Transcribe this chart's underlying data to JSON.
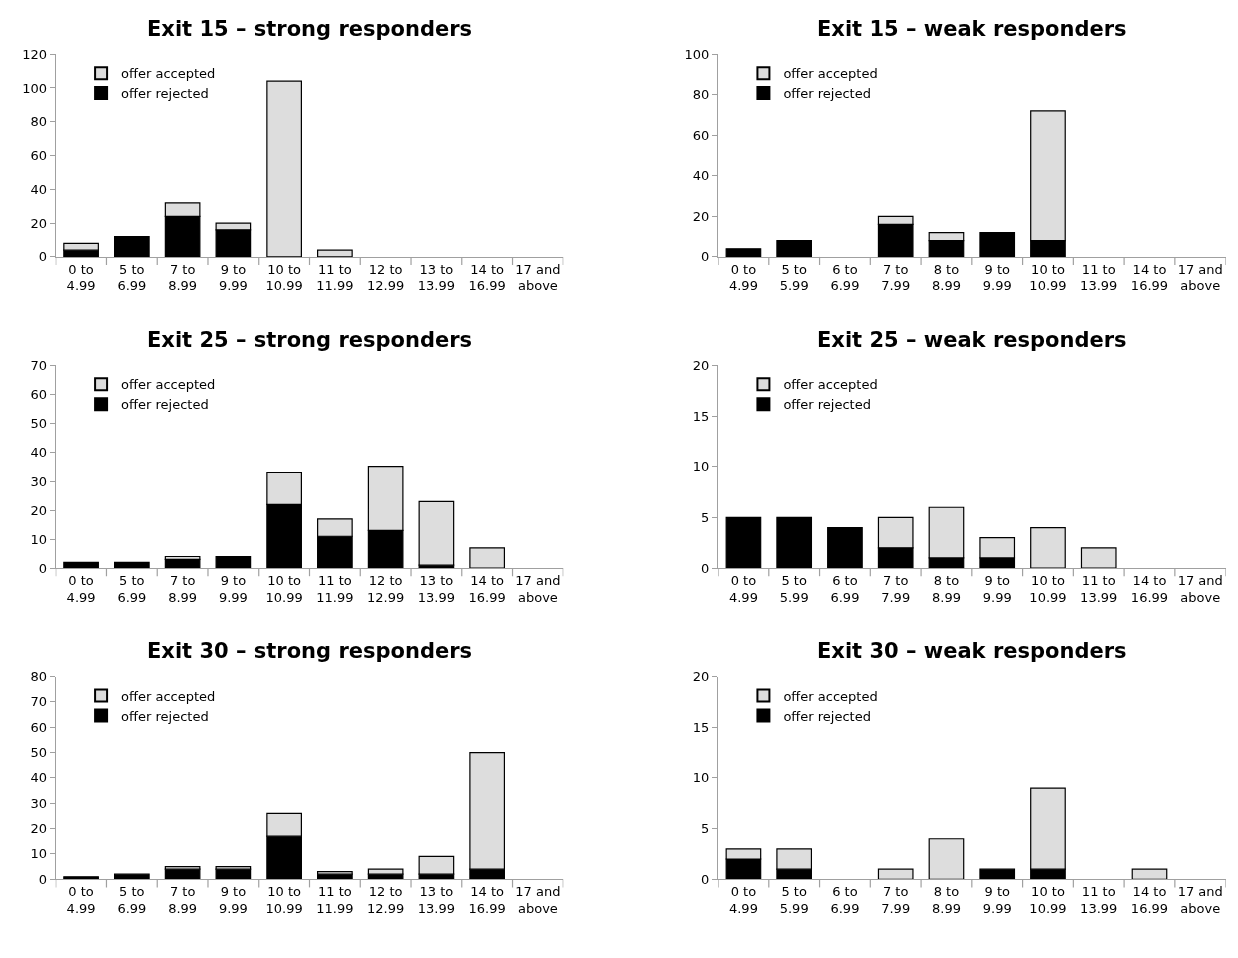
{
  "chart_data": [
    {
      "type": "bar",
      "title": "Exit 15 – strong responders",
      "stacked": true,
      "legend": "top left",
      "grid": false,
      "categories": [
        "0 to\n4.99",
        "5 to\n6.99",
        "7 to\n8.99",
        "9 to\n9.99",
        "10 to\n10.99",
        "11 to\n11.99",
        "12 to\n12.99",
        "13 to\n13.99",
        "14 to\n16.99",
        "17 and\nabove"
      ],
      "ylim": [
        0,
        120
      ],
      "yticks": [
        0,
        20,
        40,
        60,
        80,
        100,
        120
      ],
      "series": [
        {
          "name": "offer rejected",
          "color": "#000000",
          "values": [
            4,
            12,
            24,
            16,
            0,
            0,
            0,
            0,
            0,
            0
          ]
        },
        {
          "name": "offer accepted",
          "color": "#dddddd",
          "values": [
            4,
            0,
            8,
            4,
            104,
            4,
            0,
            0,
            0,
            0
          ]
        }
      ]
    },
    {
      "type": "bar",
      "title": "Exit 15 – weak responders",
      "stacked": true,
      "legend": "top left",
      "grid": false,
      "categories": [
        "0 to\n4.99",
        "5 to\n5.99",
        "6 to\n6.99",
        "7 to\n7.99",
        "8 to\n8.99",
        "9 to\n9.99",
        "10 to\n10.99",
        "11 to\n13.99",
        "14 to\n16.99",
        "17 and\nabove"
      ],
      "ylim": [
        0,
        100
      ],
      "yticks": [
        0,
        20,
        40,
        60,
        80,
        100
      ],
      "series": [
        {
          "name": "offer rejected",
          "color": "#000000",
          "values": [
            4,
            8,
            0,
            16,
            8,
            12,
            8,
            0,
            0,
            0
          ]
        },
        {
          "name": "offer accepted",
          "color": "#dddddd",
          "values": [
            0,
            0,
            0,
            4,
            4,
            0,
            64,
            0,
            0,
            0
          ]
        }
      ]
    },
    {
      "type": "bar",
      "title": "Exit 25 – strong responders",
      "stacked": true,
      "legend": "top left",
      "grid": false,
      "categories": [
        "0 to\n4.99",
        "5 to\n6.99",
        "7 to\n8.99",
        "9 to\n9.99",
        "10 to\n10.99",
        "11 to\n11.99",
        "12 to\n12.99",
        "13 to\n13.99",
        "14 to\n16.99",
        "17 and\nabove"
      ],
      "ylim": [
        0,
        70
      ],
      "yticks": [
        0,
        10,
        20,
        30,
        40,
        50,
        60,
        70
      ],
      "series": [
        {
          "name": "offer rejected",
          "color": "#000000",
          "values": [
            2,
            2,
            3,
            4,
            22,
            11,
            13,
            1,
            0,
            0
          ]
        },
        {
          "name": "offer accepted",
          "color": "#dddddd",
          "values": [
            0,
            0,
            1,
            0,
            11,
            6,
            22,
            22,
            7,
            0
          ]
        }
      ]
    },
    {
      "type": "bar",
      "title": "Exit 25 – weak responders",
      "stacked": true,
      "legend": "top left",
      "grid": false,
      "categories": [
        "0 to\n4.99",
        "5 to\n5.99",
        "6 to\n6.99",
        "7 to\n7.99",
        "8 to\n8.99",
        "9 to\n9.99",
        "10 to\n10.99",
        "11 to\n13.99",
        "14 to\n16.99",
        "17 and\nabove"
      ],
      "ylim": [
        0,
        20
      ],
      "yticks": [
        0,
        5,
        10,
        15,
        20
      ],
      "series": [
        {
          "name": "offer rejected",
          "color": "#000000",
          "values": [
            5,
            5,
            4,
            2,
            1,
            1,
            0,
            0,
            0,
            0
          ]
        },
        {
          "name": "offer accepted",
          "color": "#dddddd",
          "values": [
            0,
            0,
            0,
            3,
            5,
            2,
            4,
            2,
            0,
            0
          ]
        }
      ]
    },
    {
      "type": "bar",
      "title": "Exit 30 – strong responders",
      "stacked": true,
      "legend": "top left",
      "grid": false,
      "categories": [
        "0 to\n4.99",
        "5 to\n6.99",
        "7 to\n8.99",
        "9 to\n9.99",
        "10 to\n10.99",
        "11 to\n11.99",
        "12 to\n12.99",
        "13 to\n13.99",
        "14 to\n16.99",
        "17 and\nabove"
      ],
      "ylim": [
        0,
        80
      ],
      "yticks": [
        0,
        10,
        20,
        30,
        40,
        50,
        60,
        70,
        80
      ],
      "series": [
        {
          "name": "offer rejected",
          "color": "#000000",
          "values": [
            1,
            2,
            4,
            4,
            17,
            2,
            2,
            2,
            4,
            0
          ]
        },
        {
          "name": "offer accepted",
          "color": "#dddddd",
          "values": [
            0,
            0,
            1,
            1,
            9,
            1,
            2,
            7,
            46,
            0
          ]
        }
      ]
    },
    {
      "type": "bar",
      "title": "Exit 30 – weak responders",
      "stacked": true,
      "legend": "top left",
      "grid": false,
      "categories": [
        "0 to\n4.99",
        "5 to\n5.99",
        "6 to\n6.99",
        "7 to\n7.99",
        "8 to\n8.99",
        "9 to\n9.99",
        "10 to\n10.99",
        "11 to\n13.99",
        "14 to\n16.99",
        "17 and\nabove"
      ],
      "ylim": [
        0,
        20
      ],
      "yticks": [
        0,
        5,
        10,
        15,
        20
      ],
      "series": [
        {
          "name": "offer rejected",
          "color": "#000000",
          "values": [
            2,
            1,
            0,
            0,
            0,
            1,
            1,
            0,
            0,
            0
          ]
        },
        {
          "name": "offer accepted",
          "color": "#dddddd",
          "values": [
            1,
            2,
            0,
            1,
            4,
            0,
            8,
            0,
            1,
            0
          ]
        }
      ]
    }
  ]
}
